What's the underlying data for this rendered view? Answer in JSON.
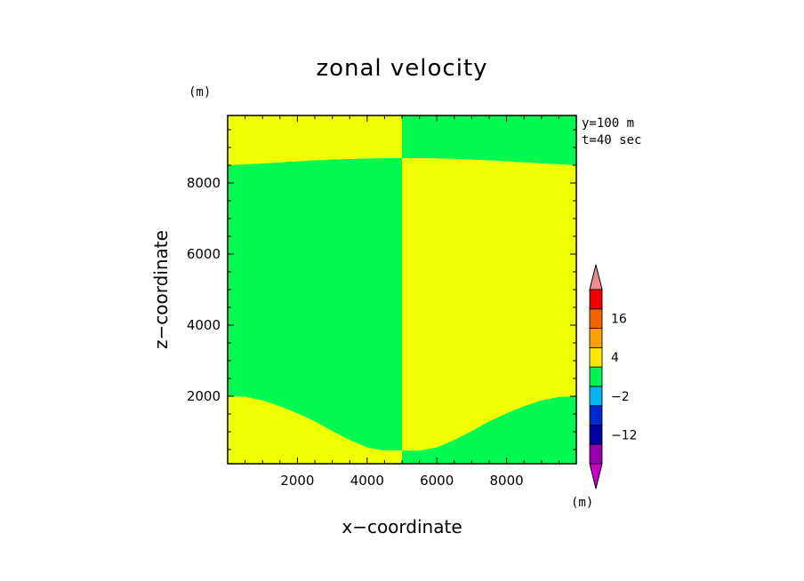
{
  "chart_data": {
    "type": "heatmap",
    "title": "zonal velocity",
    "xlabel": "x−coordinate",
    "ylabel": "z−coordinate",
    "x_unit": "(m)",
    "y_unit": "(m)",
    "xlim": [
      0,
      10000
    ],
    "ylim": [
      100,
      9900
    ],
    "x_ticks": [
      2000,
      4000,
      6000,
      8000
    ],
    "y_ticks": [
      2000,
      4000,
      6000,
      8000
    ],
    "x_tick_labels": [
      "2000",
      "4000",
      "6000",
      "8000"
    ],
    "y_tick_labels": [
      "2000",
      "4000",
      "6000",
      "8000"
    ],
    "annotations": [
      "y=100 m",
      "t=40 sec"
    ],
    "colorbar": {
      "unit": "(m)",
      "tick_labels": [
        "16",
        "4",
        "−2",
        "−12"
      ],
      "colors": [
        "#c800c8",
        "#9600aa",
        "#0000a0",
        "#0028d2",
        "#00b4f0",
        "#00f050",
        "#fae600",
        "#faa000",
        "#f06400",
        "#f00000",
        "#f08c8c"
      ]
    },
    "regions": {
      "colors": {
        "green": "#00fa50",
        "yellow": "#f0ff00"
      },
      "x_split": 5000,
      "top_interface_z": [
        [
          0,
          8500
        ],
        [
          1000,
          8550
        ],
        [
          2000,
          8610
        ],
        [
          3000,
          8660
        ],
        [
          4000,
          8690
        ],
        [
          4900,
          8700
        ],
        [
          5000,
          8700
        ],
        [
          6000,
          8690
        ],
        [
          7000,
          8660
        ],
        [
          8000,
          8610
        ],
        [
          9000,
          8550
        ],
        [
          10000,
          8500
        ]
      ],
      "bottom_interface_z": [
        [
          0,
          2000
        ],
        [
          500,
          1980
        ],
        [
          1000,
          1880
        ],
        [
          1500,
          1720
        ],
        [
          2000,
          1520
        ],
        [
          2500,
          1290
        ],
        [
          3000,
          1020
        ],
        [
          3500,
          770
        ],
        [
          4000,
          560
        ],
        [
          4500,
          470
        ],
        [
          5000,
          470
        ],
        [
          5500,
          470
        ],
        [
          6000,
          560
        ],
        [
          6500,
          770
        ],
        [
          7000,
          1020
        ],
        [
          7500,
          1290
        ],
        [
          8000,
          1520
        ],
        [
          8500,
          1720
        ],
        [
          9000,
          1880
        ],
        [
          9500,
          1980
        ],
        [
          10000,
          2000
        ]
      ],
      "left_half": {
        "top": "yellow",
        "middle": "green",
        "bottom": "yellow"
      },
      "right_half": {
        "top": "green",
        "middle": "yellow",
        "bottom": "green"
      }
    }
  }
}
